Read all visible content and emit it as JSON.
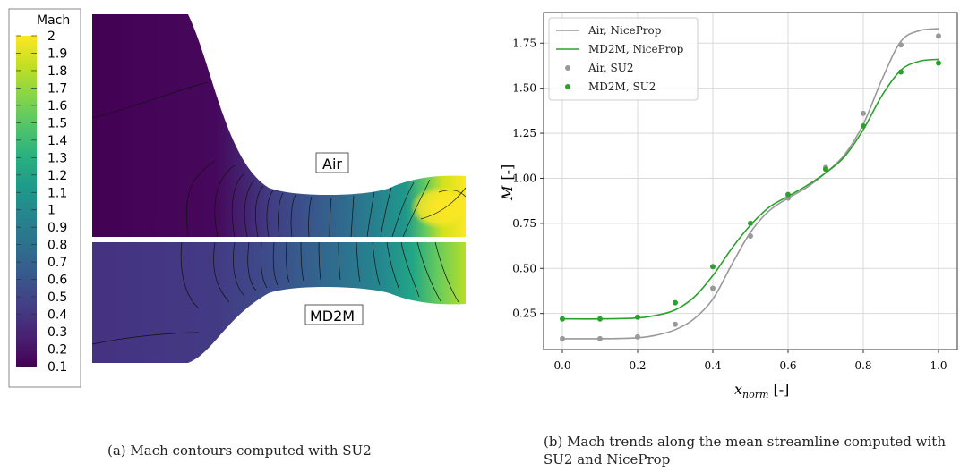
{
  "caption_a": "(a) Mach contours computed with SU2",
  "caption_b": "(b) Mach trends along the mean streamline computed with SU2 and NiceProp",
  "contour": {
    "colorbar_title": "Mach",
    "colorbar_ticks": [
      "2",
      "1.9",
      "1.8",
      "1.7",
      "1.6",
      "1.5",
      "1.4",
      "1.3",
      "1.2",
      "1.1",
      "1",
      "0.9",
      "0.8",
      "0.7",
      "0.6",
      "0.5",
      "0.4",
      "0.3",
      "0.2",
      "0.1"
    ],
    "label_top": "Air",
    "label_bottom": "MD2M",
    "colors": [
      "#440154",
      "#482173",
      "#433e85",
      "#38588c",
      "#2d708e",
      "#25858e",
      "#1e9b8a",
      "#2ab07f",
      "#52c569",
      "#86d549",
      "#c2df23",
      "#fde725"
    ]
  },
  "chart_data": {
    "type": "line",
    "xlabel_main": "x",
    "xlabel_sub": "norm",
    "xlabel_unit": " [-]",
    "ylabel_main": "M",
    "ylabel_unit": "[-]",
    "xlim": [
      -0.05,
      1.05
    ],
    "ylim": [
      0.05,
      1.92
    ],
    "xticks": [
      0.0,
      0.2,
      0.4,
      0.6,
      0.8,
      1.0
    ],
    "xtick_labels": [
      "0.0",
      "0.2",
      "0.4",
      "0.6",
      "0.8",
      "1.0"
    ],
    "yticks": [
      0.25,
      0.5,
      0.75,
      1.0,
      1.25,
      1.5,
      1.75
    ],
    "ytick_labels": [
      "0.25",
      "0.50",
      "0.75",
      "1.00",
      "1.25",
      "1.50",
      "1.75"
    ],
    "grid": true,
    "legend_position": "top-left",
    "series": [
      {
        "name": "Air, NiceProp",
        "kind": "line",
        "color": "#999999",
        "x": [
          0.0,
          0.1,
          0.2,
          0.25,
          0.3,
          0.35,
          0.4,
          0.45,
          0.5,
          0.55,
          0.6,
          0.65,
          0.7,
          0.75,
          0.8,
          0.85,
          0.9,
          0.95,
          1.0
        ],
        "y": [
          0.11,
          0.11,
          0.115,
          0.13,
          0.16,
          0.22,
          0.33,
          0.52,
          0.7,
          0.82,
          0.89,
          0.95,
          1.03,
          1.13,
          1.3,
          1.55,
          1.76,
          1.82,
          1.83
        ]
      },
      {
        "name": "MD2M, NiceProp",
        "kind": "line",
        "color": "#2ca02c",
        "x": [
          0.0,
          0.1,
          0.2,
          0.25,
          0.3,
          0.35,
          0.4,
          0.45,
          0.5,
          0.55,
          0.6,
          0.65,
          0.7,
          0.75,
          0.8,
          0.85,
          0.9,
          0.95,
          1.0
        ],
        "y": [
          0.22,
          0.22,
          0.225,
          0.24,
          0.27,
          0.34,
          0.46,
          0.61,
          0.74,
          0.84,
          0.9,
          0.96,
          1.03,
          1.12,
          1.27,
          1.46,
          1.6,
          1.65,
          1.66
        ]
      },
      {
        "name": "Air, SU2",
        "kind": "scatter",
        "color": "#999999",
        "x": [
          0.0,
          0.1,
          0.2,
          0.3,
          0.4,
          0.5,
          0.6,
          0.7,
          0.8,
          0.9,
          1.0
        ],
        "y": [
          0.11,
          0.11,
          0.12,
          0.19,
          0.39,
          0.68,
          0.89,
          1.06,
          1.36,
          1.74,
          1.79
        ]
      },
      {
        "name": "MD2M, SU2",
        "kind": "scatter",
        "color": "#2ca02c",
        "x": [
          0.0,
          0.1,
          0.2,
          0.3,
          0.4,
          0.5,
          0.6,
          0.7,
          0.8,
          0.9,
          1.0
        ],
        "y": [
          0.22,
          0.22,
          0.23,
          0.31,
          0.51,
          0.75,
          0.91,
          1.05,
          1.29,
          1.59,
          1.64
        ]
      }
    ]
  }
}
